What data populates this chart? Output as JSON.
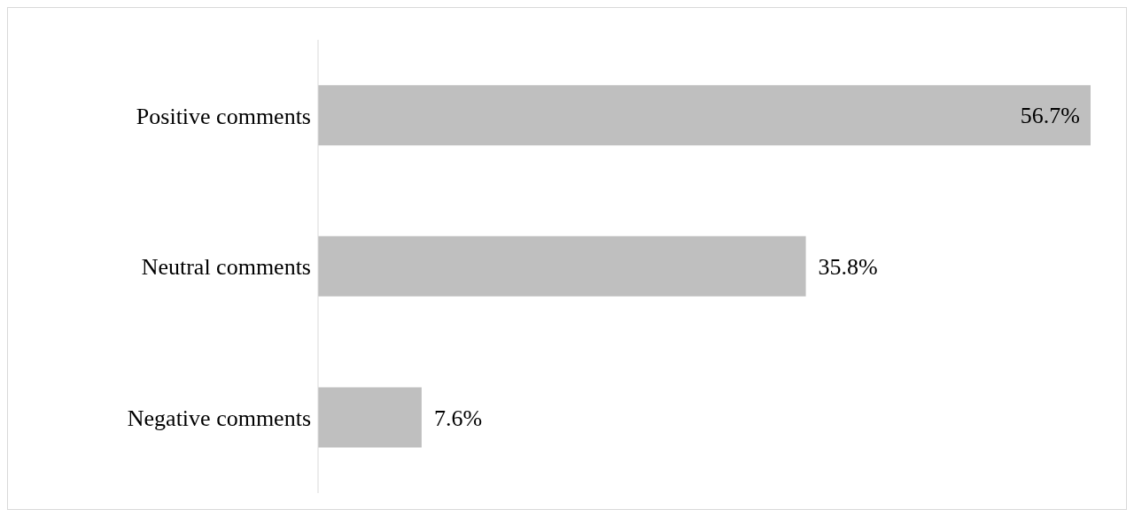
{
  "chart_data": {
    "type": "bar",
    "orientation": "horizontal",
    "categories": [
      "Positive comments",
      "Neutral comments",
      "Negative comments"
    ],
    "values": [
      56.7,
      35.8,
      7.6
    ],
    "value_labels": [
      "56.7%",
      "35.8%",
      "7.6%"
    ],
    "color": "#bfbfbf"
  }
}
